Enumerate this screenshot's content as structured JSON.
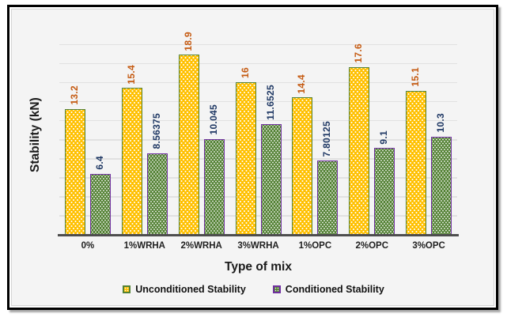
{
  "chart_data": {
    "type": "bar",
    "categories": [
      "0%",
      "1%WRHA",
      "2%WRHA",
      "3%WRHA",
      "1%OPC",
      "2%OPC",
      "3%OPC"
    ],
    "series": [
      {
        "name": "Unconditioned Stability",
        "values": [
          13.2,
          15.4,
          18.9,
          16,
          14.4,
          17.6,
          15.1
        ],
        "labels": [
          "13.2",
          "15.4",
          "18.9",
          "16",
          "14.4",
          "17.6",
          "15.1"
        ],
        "fill": "#FFC000",
        "border": "#538135",
        "label_color": "#C55A11"
      },
      {
        "name": "Conditioned Stability",
        "values": [
          6.4,
          8.56375,
          10.045,
          11.6525,
          7.80125,
          9.1,
          10.3
        ],
        "labels": [
          "6.4",
          "8.56375",
          "10.045",
          "11.6525",
          "7.80125",
          "9.1",
          "10.3"
        ],
        "fill": "#548235",
        "border": "#7030A0",
        "label_color": "#1F3864"
      }
    ],
    "xlabel": "Type of mix",
    "ylabel": "Stability (kN)",
    "ylim": [
      0,
      20
    ],
    "grid_step": 2,
    "grid": true,
    "legend_position": "bottom",
    "plot_bg": "#f4f4f4",
    "gridline_color": "#e1e1e1",
    "axis_line_color": "#4d4d4d"
  }
}
